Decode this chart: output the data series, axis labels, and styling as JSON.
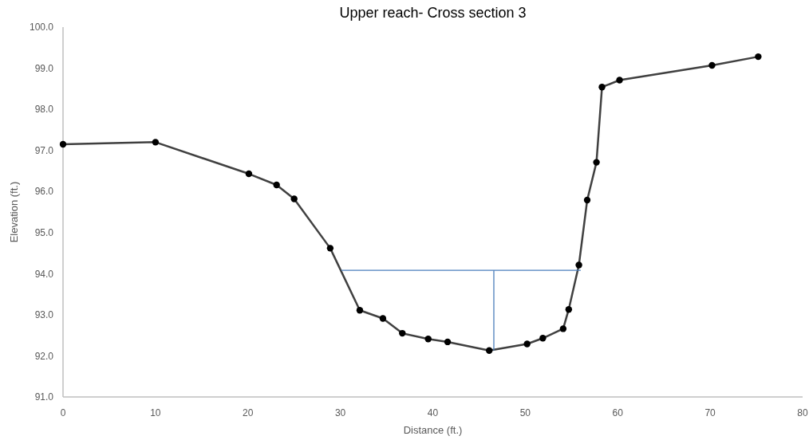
{
  "chart_data": {
    "type": "line",
    "title": "Upper reach- Cross section 3",
    "xlabel": "Distance (ft.)",
    "ylabel": "Elevation (ft.)",
    "xlim": [
      0,
      80
    ],
    "xticks": [
      0,
      10,
      20,
      30,
      40,
      50,
      60,
      70,
      80
    ],
    "ylim": [
      91,
      100
    ],
    "yticks": [
      {
        "value": 91,
        "label": "91.0"
      },
      {
        "value": 92,
        "label": "92.0"
      },
      {
        "value": 93,
        "label": "93.0"
      },
      {
        "value": 94,
        "label": "94.0"
      },
      {
        "value": 95,
        "label": "95.0"
      },
      {
        "value": 96,
        "label": "96.0"
      },
      {
        "value": 97,
        "label": "97.0"
      },
      {
        "value": 98,
        "label": "98.0"
      },
      {
        "value": 99,
        "label": "99.0"
      },
      {
        "value": 100,
        "label": "100.0"
      }
    ],
    "grid": false,
    "series": [
      {
        "color": "#404040",
        "marker": "circle",
        "x": [
          0,
          10,
          20.1,
          23.1,
          25,
          28.9,
          32.1,
          34.6,
          36.7,
          39.5,
          41.6,
          46.1,
          50.2,
          51.9,
          54.1,
          54.7,
          55.8,
          56.7,
          57.7,
          58.3,
          60.2,
          70.2,
          75.2
        ],
        "values": [
          97.15,
          97.2,
          96.43,
          96.16,
          95.82,
          94.62,
          93.11,
          92.91,
          92.55,
          92.41,
          92.34,
          92.13,
          92.29,
          92.43,
          92.66,
          93.13,
          94.21,
          95.79,
          96.71,
          98.54,
          98.71,
          99.07,
          99.28
        ]
      },
      {
        "color": "#4a7ebb",
        "marker": "none",
        "x": [
          30.1,
          56
        ],
        "values": [
          94.08,
          94.08
        ]
      },
      {
        "color": "#4a7ebb",
        "marker": "none",
        "x": [
          46.6,
          46.6
        ],
        "values": [
          94.08,
          92.13
        ]
      }
    ]
  }
}
